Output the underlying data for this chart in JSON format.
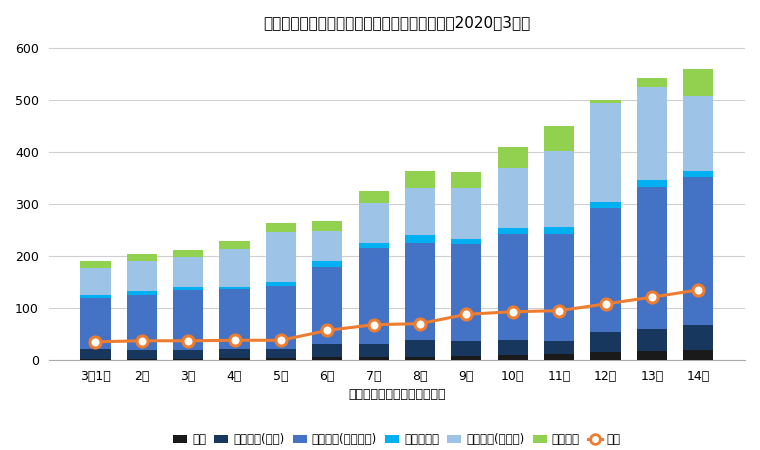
{
  "title": "新型コロナウイルスの日本国内での感染者数【2020年3月】",
  "xlabel": "国内での発症が確認された者",
  "categories": [
    "3月1日",
    "2日",
    "3日",
    "4日",
    "5日",
    "6日",
    "7日",
    "8日",
    "9日",
    "10日",
    "11日",
    "12日",
    "13日",
    "14日"
  ],
  "death": [
    2,
    2,
    2,
    3,
    3,
    5,
    5,
    6,
    8,
    10,
    12,
    15,
    17,
    19
  ],
  "severe": [
    20,
    18,
    18,
    18,
    18,
    25,
    25,
    32,
    28,
    28,
    25,
    38,
    42,
    48
  ],
  "mild": [
    98,
    105,
    115,
    115,
    122,
    150,
    185,
    188,
    188,
    205,
    205,
    240,
    275,
    285
  ],
  "waiting": [
    5,
    8,
    5,
    5,
    8,
    10,
    10,
    15,
    10,
    12,
    15,
    12,
    12,
    12
  ],
  "confirmed": [
    52,
    58,
    58,
    72,
    95,
    58,
    78,
    90,
    98,
    115,
    145,
    190,
    180,
    145
  ],
  "asymptomatic": [
    13,
    14,
    14,
    17,
    17,
    19,
    23,
    33,
    31,
    40,
    48,
    5,
    17,
    52
  ],
  "discharged": [
    35,
    37,
    37,
    38,
    38,
    57,
    68,
    70,
    88,
    93,
    95,
    108,
    121,
    135
  ],
  "colors": {
    "death": "#1a1a1a",
    "severe": "#17375e",
    "mild": "#4472c4",
    "waiting": "#00b0f0",
    "confirmed": "#9dc3e6",
    "asymptomatic": "#92d050",
    "discharged": "#ed7d31"
  },
  "legend_labels": {
    "death": "死者",
    "severe": "入院患者(重度)",
    "mild": "入院患者(小～中度)",
    "waiting": "入院待機中",
    "confirmed": "入院患者(確認中)",
    "asymptomatic": "無症状者",
    "discharged": "退院"
  },
  "ylim": [
    0,
    620
  ],
  "yticks": [
    0,
    100,
    200,
    300,
    400,
    500,
    600
  ],
  "background_color": "#ffffff",
  "grid_color": "#d0d0d0"
}
